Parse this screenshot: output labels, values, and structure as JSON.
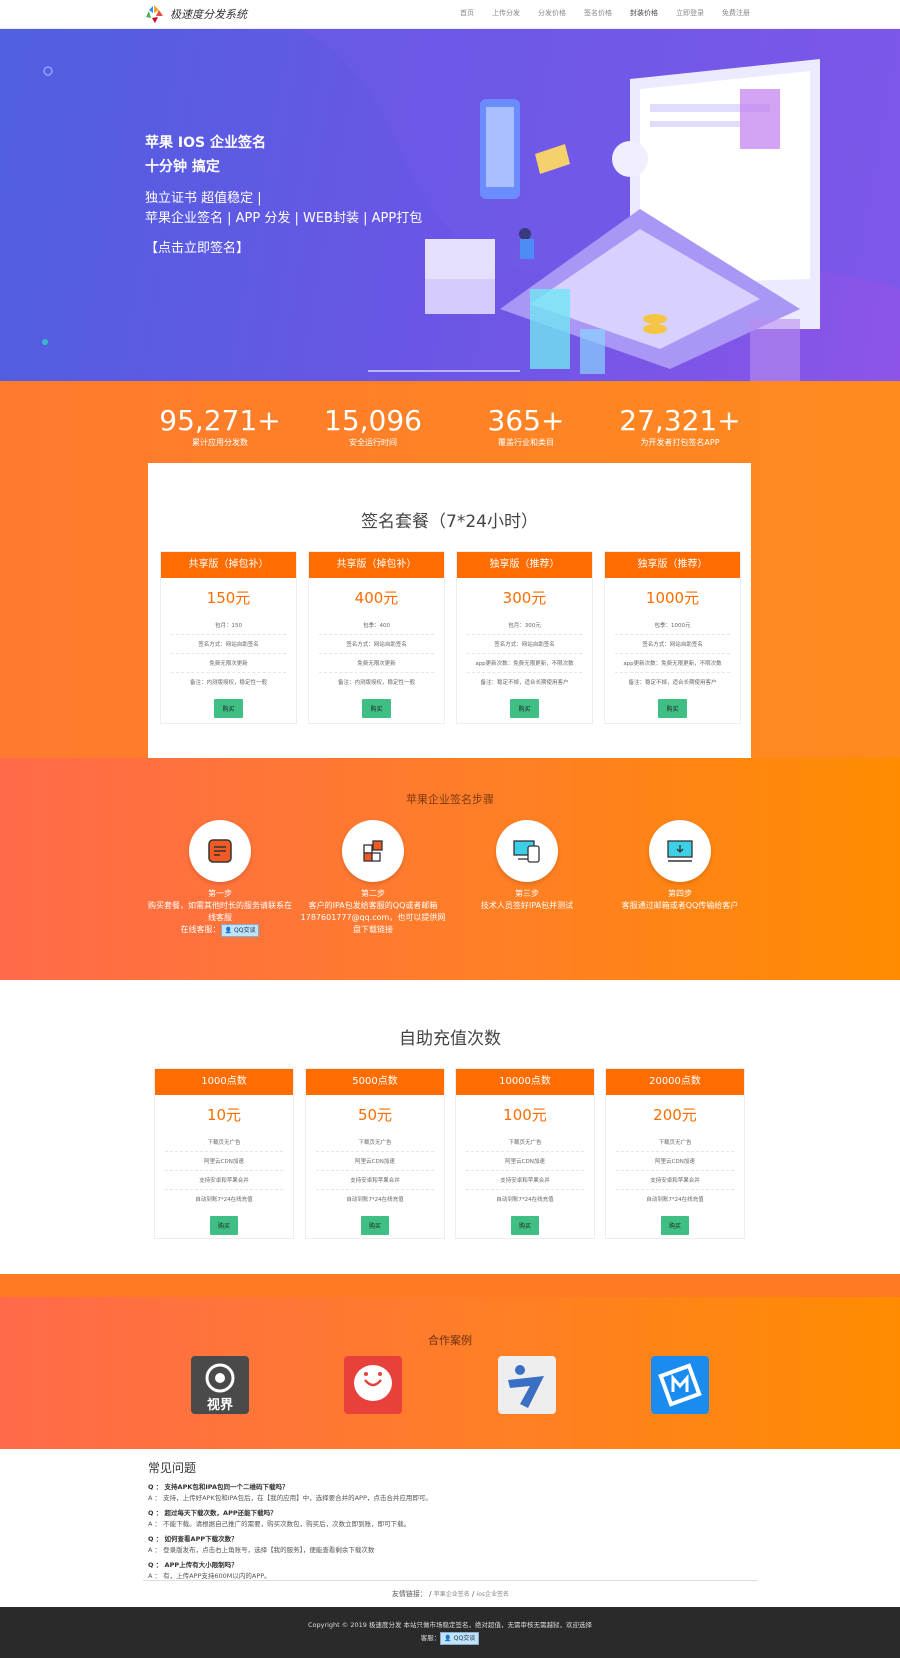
{
  "nav": {
    "brand": "极速度分发系统",
    "links": [
      "首页",
      "上传分发",
      "分发价格",
      "签名价格",
      "封装价格",
      "立即登录",
      "免费注册"
    ],
    "active_index": 4
  },
  "hero": {
    "line1": "苹果 IOS 企业签名",
    "line2": "十分钟 搞定",
    "line3": "独立证书 超值稳定 |",
    "line4": "苹果企业签名 | APP 分发 | WEB封装 | APP打包",
    "cta": "【点击立即签名】"
  },
  "stats": [
    {
      "value": "95,271+",
      "label": "累计应用分发数"
    },
    {
      "value": "15,096",
      "label": "安全运行时间"
    },
    {
      "value": "365+",
      "label": "覆盖行业和类目"
    },
    {
      "value": "27,321+",
      "label": "为开发者打包签名APP"
    }
  ],
  "sign_plans": {
    "title": "签名套餐（7*24小时）",
    "buy_label": "购买",
    "plans": [
      {
        "name": "共享版（掉包补）",
        "price": "150元",
        "rows": [
          "包月：150",
          "签名方式：网站自助签名",
          "免费无限次更新",
          "备注：内测版授权，稳定性一般"
        ]
      },
      {
        "name": "共享版（掉包补）",
        "price": "400元",
        "rows": [
          "包季：400",
          "签名方式：网站自助签名",
          "免费无限次更新",
          "备注：内测版授权，稳定性一般"
        ]
      },
      {
        "name": "独享版（推荐）",
        "price": "300元",
        "rows": [
          "包月：300元",
          "签名方式：网站自助签名",
          "app更新次数：免费无限更新，不限次数",
          "备注：稳定不掉，适合长期使用客户"
        ]
      },
      {
        "name": "独享版（推荐）",
        "price": "1000元",
        "rows": [
          "包季：1000元",
          "签名方式：网站自助签名",
          "app更新次数：免费无限更新，不限次数",
          "备注：稳定不掉，适合长期使用客户"
        ]
      }
    ]
  },
  "steps": {
    "title": "苹果企业签名步骤",
    "items": [
      {
        "icon": "document-icon",
        "title": "第一步",
        "text": "购买套餐，如需其他时长的服务请联系在线客服",
        "extra": "在线客服：",
        "qq": "QQ交谈"
      },
      {
        "icon": "blocks-icon",
        "title": "第二步",
        "text": "客户的IPA包发给客服的QQ或者邮箱1787601777@qq.com，也可以提供网盘下载链接"
      },
      {
        "icon": "devices-icon",
        "title": "第三步",
        "text": "技术人员签好IPA包并测试"
      },
      {
        "icon": "monitor-download-icon",
        "title": "第四步",
        "text": "客服通过邮箱或者QQ传输给客户"
      }
    ]
  },
  "recharge": {
    "title": "自助充值次数",
    "buy_label": "购买",
    "plans": [
      {
        "name": "1000点数",
        "price": "10元",
        "rows": [
          "下载页无广告",
          "阿里云CDN加速",
          "支持安卓和苹果合并",
          "自动到账7*24在线充值"
        ]
      },
      {
        "name": "5000点数",
        "price": "50元",
        "rows": [
          "下载页无广告",
          "阿里云CDN加速",
          "支持安卓和苹果合并",
          "自动到账7*24在线充值"
        ]
      },
      {
        "name": "10000点数",
        "price": "100元",
        "rows": [
          "下载页无广告",
          "阿里云CDN加速",
          "支持安卓和苹果合并",
          "自动到账7*24在线充值"
        ]
      },
      {
        "name": "20000点数",
        "price": "200元",
        "rows": [
          "下载页无广告",
          "阿里云CDN加速",
          "支持安卓和苹果合并",
          "自动到账7*24在线充值"
        ]
      }
    ]
  },
  "partners": {
    "title": "合作案例",
    "logos": [
      {
        "text": "视界"
      },
      {
        "text": ""
      },
      {
        "text": ""
      },
      {
        "text": ""
      }
    ]
  },
  "faq": {
    "title": "常见问题",
    "items": [
      {
        "q": "Q ： 支持APK包和IPA包同一个二维码下载吗？",
        "a": "A ： 支持，上传好APK包和IPA包后，在【我的应用】中，选择要合并的APP，点击合并应用即可。"
      },
      {
        "q": "Q ： 超过每天下载次数，APP还能下载吗？",
        "a": "A ： 不能下载。请根据自己推广的需要，购买次数包，购买后，次数立即到账，即可下载。"
      },
      {
        "q": "Q ： 如何查看APP下载次数？",
        "a": "A ： 登录版发布，点击右上角账号，选择【我的服务】，便能查看剩余下载次数"
      },
      {
        "q": "Q ： APP上传有大小限制吗？",
        "a": "A ： 有，上传APP支持600M以内的APP。"
      }
    ]
  },
  "links": {
    "label": "友情链接：",
    "sep": "/",
    "items": [
      "苹果企业签名",
      "ios企业签名"
    ]
  },
  "footer": {
    "copyright": "Copyright © 2019 极速度分发   本站只做市场稳定签名，绝对超值，无需审核无需越狱，欢迎选择",
    "service_label": "客服：",
    "qq": "QQ交谈"
  },
  "colors": {
    "accent": "#ff6c00",
    "buy": "#3fbf84",
    "hero": "#5b5be3",
    "footer": "#2a2a2a"
  }
}
